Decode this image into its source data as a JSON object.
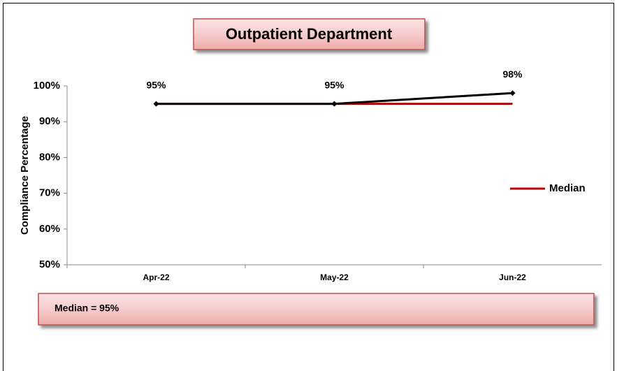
{
  "chart_data": {
    "type": "line",
    "title": "Outpatient Department",
    "y_label": "Compliance Percentage",
    "annotation": "Median = 95%",
    "categories": [
      "Apr-22",
      "May-22",
      "Jun-22"
    ],
    "series": [
      {
        "color": "#000000",
        "values": [
          95,
          95,
          98
        ],
        "value_labels": [
          "95%",
          "95%",
          "98%"
        ]
      },
      {
        "name": "Median",
        "color": "#c00000",
        "values": [
          95,
          95,
          95
        ]
      }
    ],
    "ylim": [
      50,
      100
    ],
    "yticks": [
      {
        "value": 50,
        "label": "50%"
      },
      {
        "value": 60,
        "label": "60%"
      },
      {
        "value": 70,
        "label": "70%"
      },
      {
        "value": 80,
        "label": "80%"
      },
      {
        "value": 90,
        "label": "90%"
      },
      {
        "value": 100,
        "label": "100%"
      }
    ],
    "legend": "right"
  }
}
